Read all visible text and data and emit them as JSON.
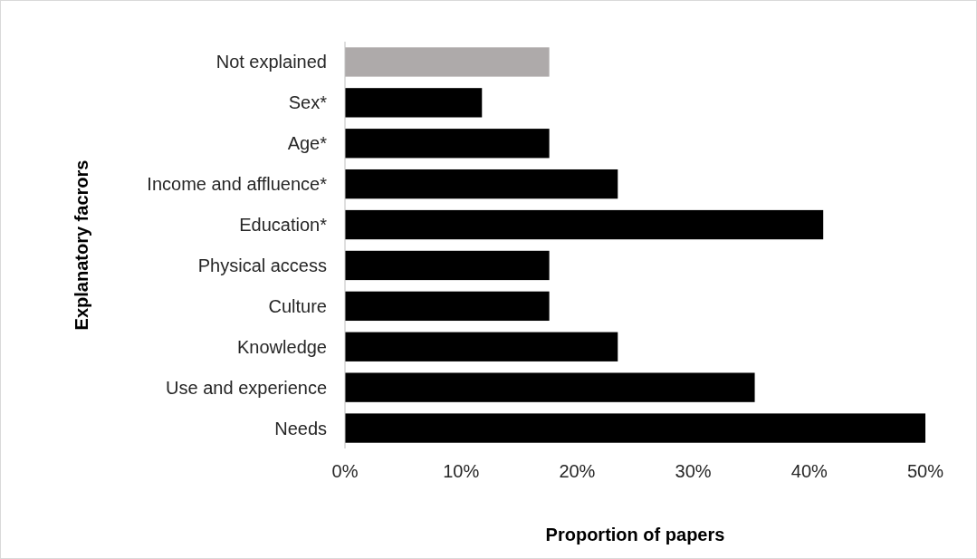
{
  "chart_data": {
    "type": "bar",
    "orientation": "horizontal",
    "xlabel": "Proportion of papers",
    "ylabel": "Explanatory facrors",
    "categories": [
      "Not explained",
      "Sex*",
      "Age*",
      "Income and affluence*",
      "Education*",
      "Physical access",
      "Culture",
      "Knowledge",
      "Use and experience",
      "Needs"
    ],
    "values": [
      17.6,
      11.8,
      17.6,
      23.5,
      41.2,
      17.6,
      17.6,
      23.5,
      35.3,
      50
    ],
    "colors": [
      "#aeaaaa",
      "#000000",
      "#000000",
      "#000000",
      "#000000",
      "#000000",
      "#000000",
      "#000000",
      "#000000",
      "#000000"
    ],
    "xlim": [
      0,
      50
    ],
    "xticks": [
      {
        "value": 0,
        "label": "0%"
      },
      {
        "value": 10,
        "label": "10%"
      },
      {
        "value": 20,
        "label": "20%"
      },
      {
        "value": 30,
        "label": "30%"
      },
      {
        "value": 40,
        "label": "40%"
      },
      {
        "value": 50,
        "label": "50%"
      }
    ],
    "grid": false
  }
}
